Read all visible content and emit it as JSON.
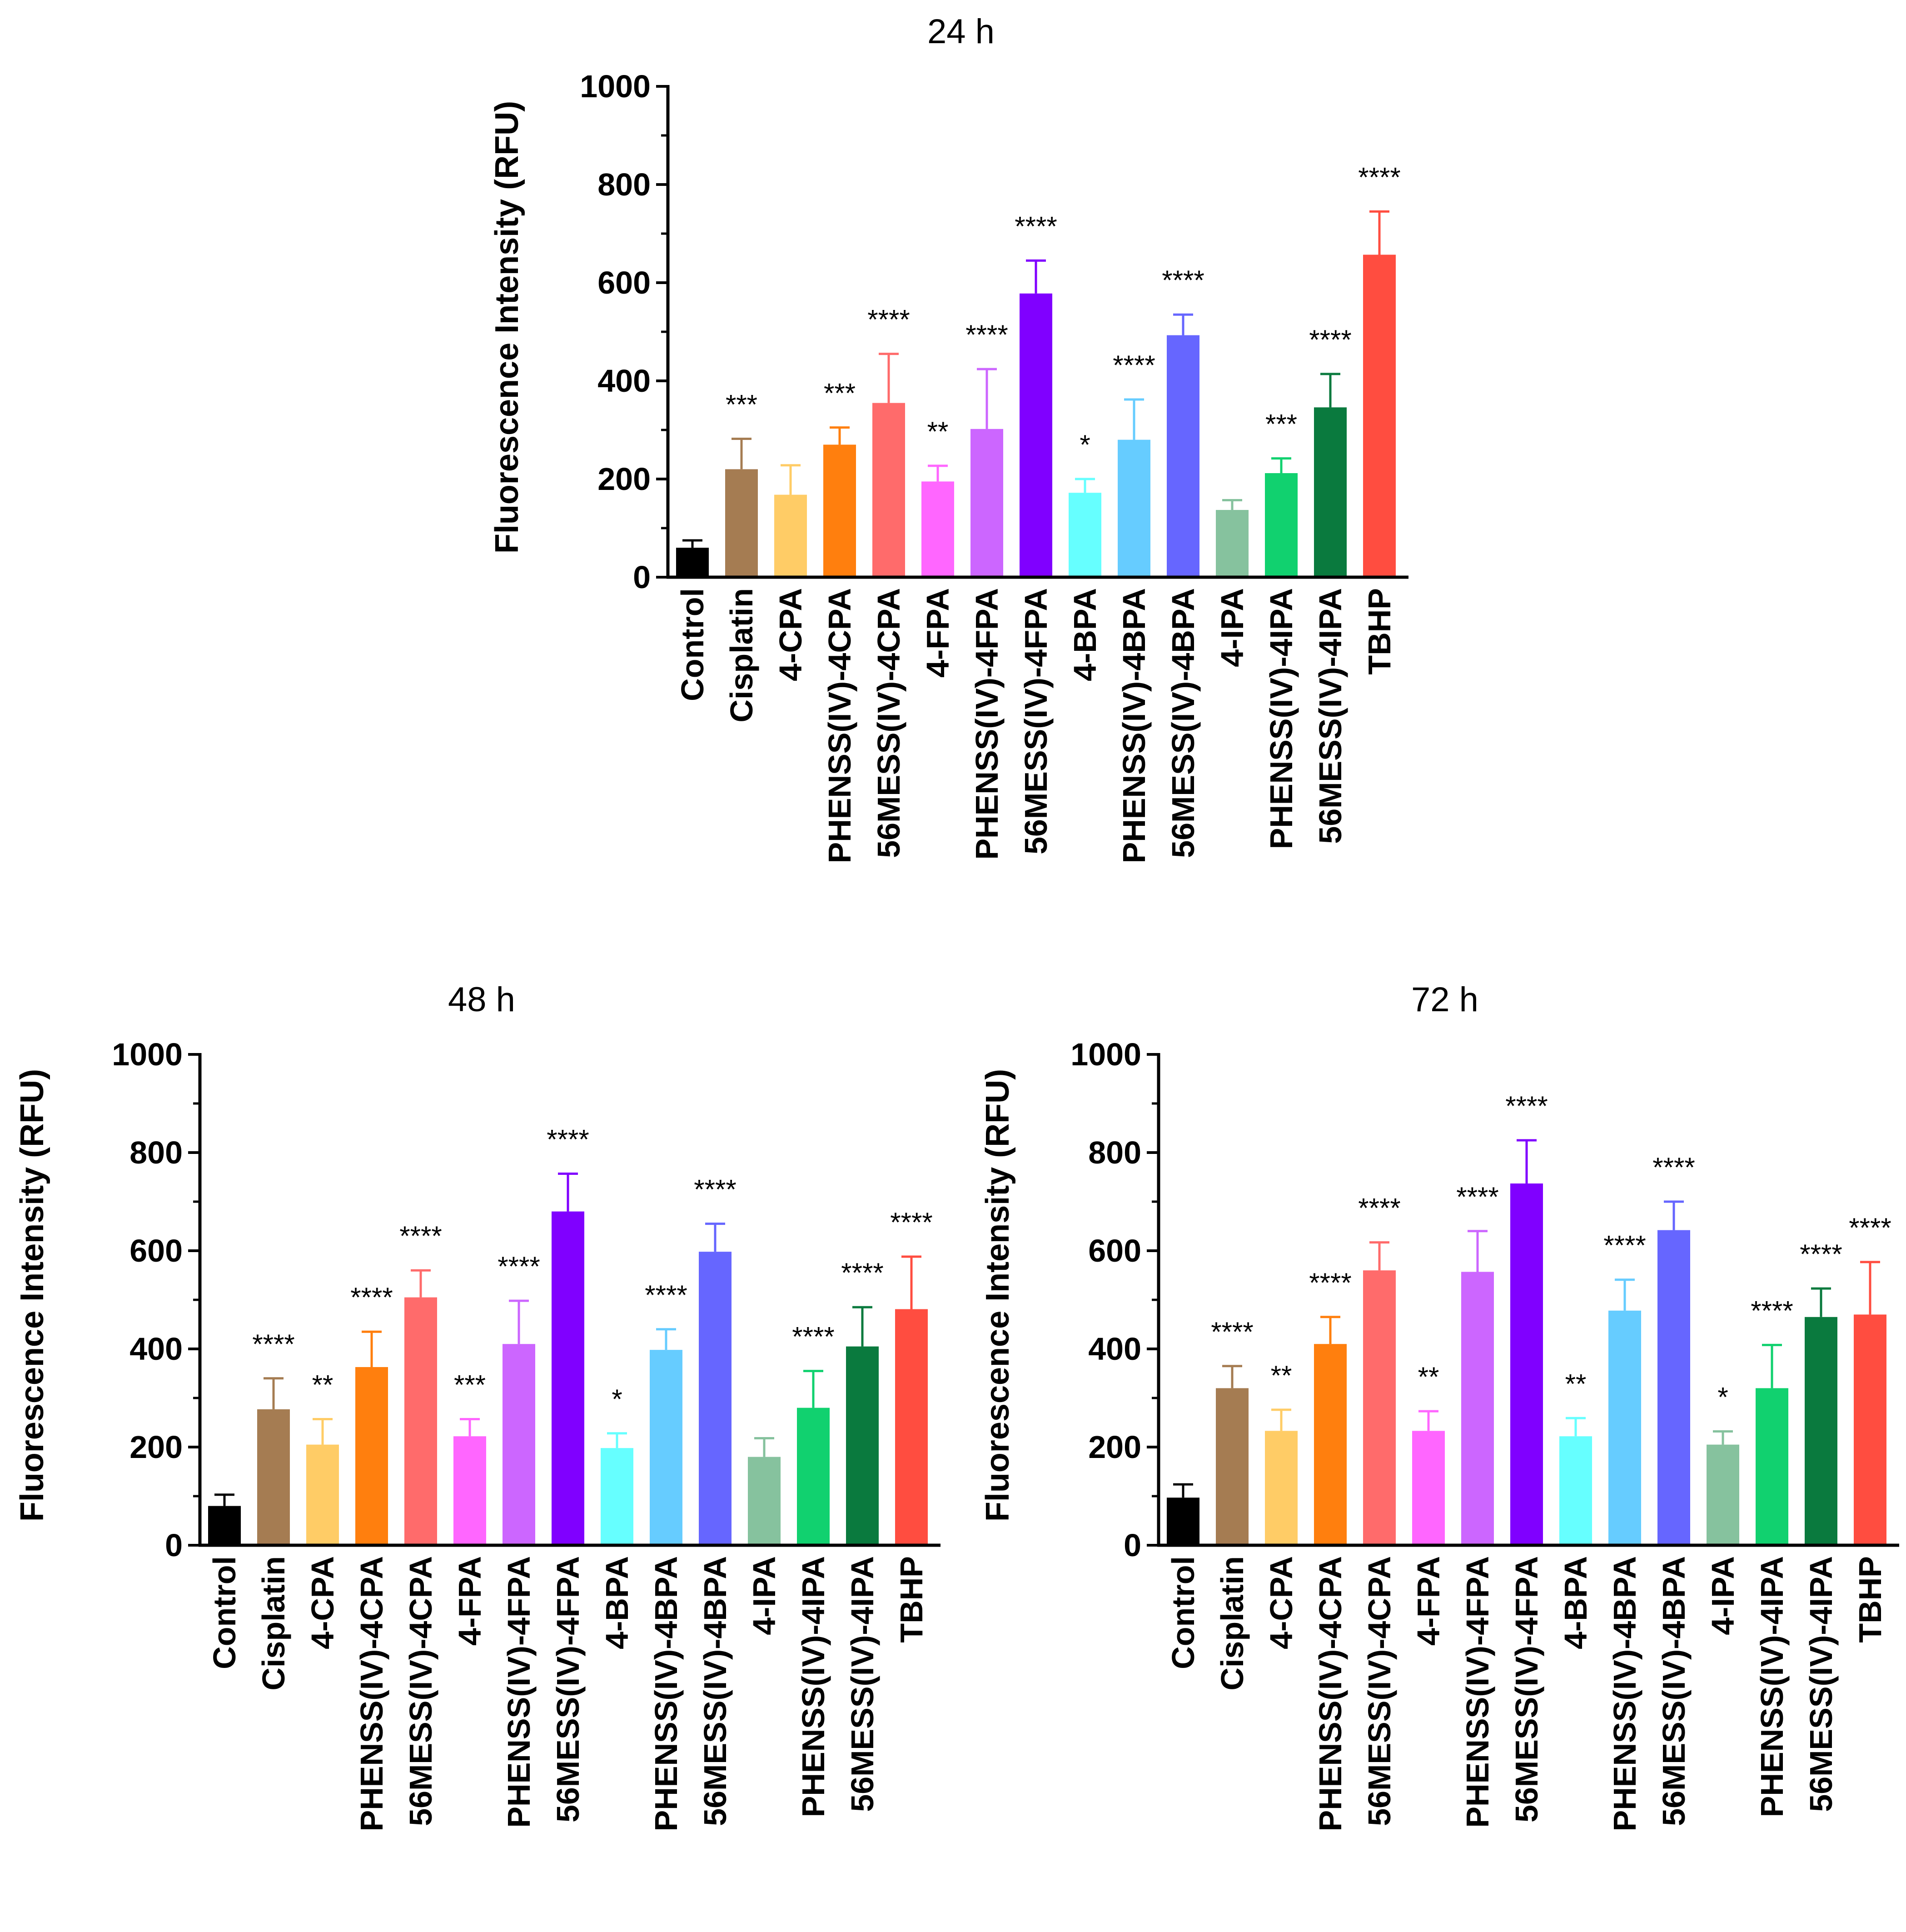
{
  "chart_data": [
    {
      "type": "bar",
      "title": "24 h",
      "ylabel": "Fluorescence Intensity (RFU)",
      "xlabel": "",
      "ylim": [
        0,
        1000
      ],
      "yticks": [
        "0",
        "200",
        "400",
        "600",
        "800",
        "1000"
      ],
      "categories": [
        "Control",
        "Cisplatin",
        "4-CPA",
        "PHENSS(IV)-4CPA",
        "56MESS(IV)-4CPA",
        "4-FPA",
        "PHENSS(IV)-4FPA",
        "56MESS(IV)-4FPA",
        "4-BPA",
        "PHENSS(IV)-4BPA",
        "56MESS(IV)-4BPA",
        "4-IPA",
        "PHENSS(IV)-4IPA",
        "56MESS(IV)-4IPA",
        "TBHP"
      ],
      "values": [
        60,
        220,
        168,
        270,
        355,
        195,
        302,
        578,
        172,
        280,
        493,
        137,
        212,
        346,
        657
      ],
      "errors": [
        15,
        62,
        60,
        35,
        100,
        32,
        122,
        67,
        28,
        82,
        42,
        20,
        30,
        68,
        88
      ],
      "significance": [
        "",
        "***",
        "",
        "***",
        "****",
        "**",
        "****",
        "****",
        "*",
        "****",
        "****",
        "",
        "***",
        "****",
        "****"
      ]
    },
    {
      "type": "bar",
      "title": "48 h",
      "ylabel": "Fluorescence Intensity (RFU)",
      "xlabel": "",
      "ylim": [
        0,
        1000
      ],
      "yticks": [
        "0",
        "200",
        "400",
        "600",
        "800",
        "1000"
      ],
      "categories": [
        "Control",
        "Cisplatin",
        "4-CPA",
        "PHENSS(IV)-4CPA",
        "56MESS(IV)-4CPA",
        "4-FPA",
        "PHENSS(IV)-4FPA",
        "56MESS(IV)-4FPA",
        "4-BPA",
        "PHENSS(IV)-4BPA",
        "56MESS(IV)-4BPA",
        "4-IPA",
        "PHENSS(IV)-4IPA",
        "56MESS(IV)-4IPA",
        "TBHP"
      ],
      "values": [
        80,
        277,
        205,
        363,
        505,
        222,
        410,
        680,
        198,
        398,
        598,
        180,
        280,
        405,
        481
      ],
      "errors": [
        23,
        63,
        52,
        72,
        55,
        35,
        88,
        77,
        30,
        42,
        57,
        38,
        75,
        80,
        107
      ],
      "significance": [
        "",
        "****",
        "**",
        "****",
        "****",
        "***",
        "****",
        "****",
        "*",
        "****",
        "****",
        "",
        "****",
        "****",
        "****"
      ]
    },
    {
      "type": "bar",
      "title": "72 h",
      "ylabel": "Fluorescence Intensity (RFU)",
      "xlabel": "",
      "ylim": [
        0,
        1000
      ],
      "yticks": [
        "0",
        "200",
        "400",
        "600",
        "800",
        "1000"
      ],
      "categories": [
        "Control",
        "Cisplatin",
        "4-CPA",
        "PHENSS(IV)-4CPA",
        "56MESS(IV)-4CPA",
        "4-FPA",
        "PHENSS(IV)-4FPA",
        "56MESS(IV)-4FPA",
        "4-BPA",
        "PHENSS(IV)-4BPA",
        "56MESS(IV)-4BPA",
        "4-IPA",
        "PHENSS(IV)-4IPA",
        "56MESS(IV)-4IPA",
        "TBHP"
      ],
      "values": [
        97,
        320,
        233,
        410,
        560,
        233,
        557,
        737,
        222,
        478,
        642,
        205,
        320,
        465,
        470
      ],
      "errors": [
        27,
        45,
        43,
        55,
        57,
        40,
        83,
        88,
        37,
        63,
        58,
        27,
        88,
        58,
        107
      ],
      "significance": [
        "",
        "****",
        "**",
        "****",
        "****",
        "**",
        "****",
        "****",
        "**",
        "****",
        "****",
        "*",
        "****",
        "****",
        "****"
      ]
    }
  ],
  "colors": [
    "#000000",
    "#A57C52",
    "#FFCC66",
    "#FF7F0E",
    "#FF6B6B",
    "#FF66FF",
    "#CC66FF",
    "#8000FF",
    "#66FFFF",
    "#66CCFF",
    "#6666FF",
    "#86C29E",
    "#11D16F",
    "#0A7A3E",
    "#FF4D40"
  ]
}
